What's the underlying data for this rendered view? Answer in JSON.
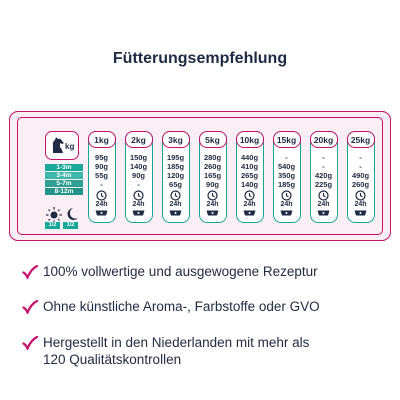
{
  "title": "Fütterungsempfehlung",
  "table": {
    "weight_unit": "kg",
    "ages": [
      "1-3m",
      "3-4m",
      "5-7m",
      "8-12m"
    ],
    "age_colors": [
      "#1aa89b",
      "#3fb6aa",
      "#2f9f95",
      "#239489"
    ],
    "halves": [
      "1/2",
      "1/2"
    ],
    "columns": [
      {
        "weight": "1kg",
        "values": [
          "95g",
          "90g",
          "55g",
          "-"
        ],
        "hours": "24h"
      },
      {
        "weight": "2kg",
        "values": [
          "150g",
          "140g",
          "90g",
          "-"
        ],
        "hours": "24h"
      },
      {
        "weight": "3kg",
        "values": [
          "195g",
          "185g",
          "120g",
          "65g"
        ],
        "hours": "24h"
      },
      {
        "weight": "5kg",
        "values": [
          "280g",
          "260g",
          "165g",
          "90g"
        ],
        "hours": "24h"
      },
      {
        "weight": "10kg",
        "values": [
          "440g",
          "410g",
          "265g",
          "140g"
        ],
        "hours": "24h"
      },
      {
        "weight": "15kg",
        "values": [
          "-",
          "540g",
          "350g",
          "185g"
        ],
        "hours": "24h"
      },
      {
        "weight": "20kg",
        "values": [
          "-",
          "-",
          "420g",
          "225g"
        ],
        "hours": "24h"
      },
      {
        "weight": "25kg",
        "values": [
          "-",
          "-",
          "490g",
          "260g"
        ],
        "hours": "24h"
      }
    ]
  },
  "features": [
    {
      "lines": [
        "100% vollwertige und ausgewogene Rezeptur"
      ]
    },
    {
      "lines": [
        "Ohne künstliche Aroma-, Farbstoffe oder GVO"
      ]
    },
    {
      "lines": [
        "Hergestellt in den Niederlanden mit mehr als",
        "120 Qualitätskontrollen"
      ]
    }
  ],
  "colors": {
    "accent": "#c6106c",
    "teal": "#17a79a",
    "text": "#1f2a44"
  },
  "icons": [
    "dog-icon",
    "clock-icon",
    "bowl-icon",
    "sun-icon",
    "moon-icon",
    "check-icon"
  ]
}
